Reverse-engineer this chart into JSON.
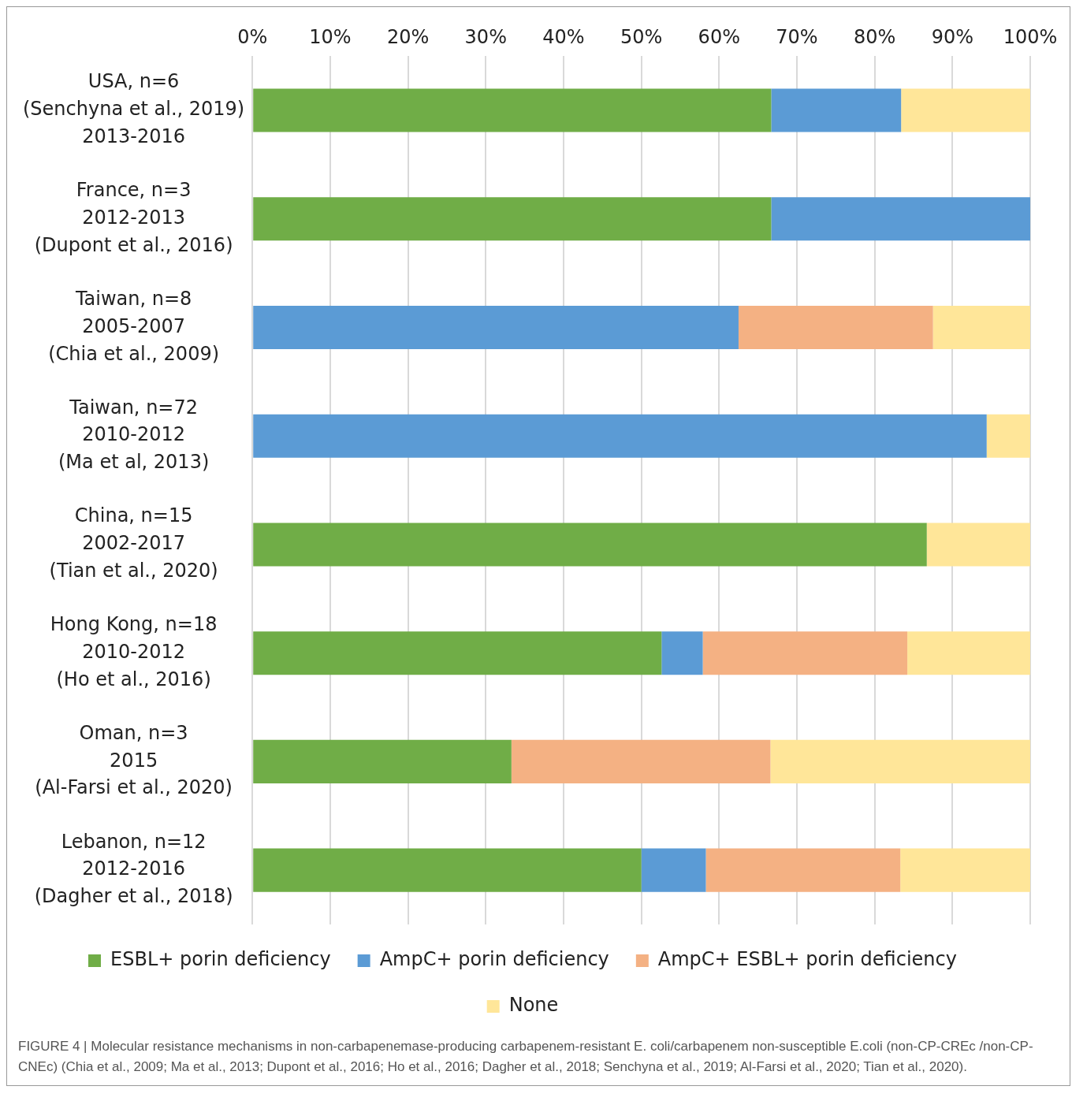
{
  "chart_data": {
    "type": "bar",
    "orientation": "horizontal",
    "stacked": true,
    "categories": [
      "USA, n=6\n(Senchyna et al., 2019)\n2013-2016",
      "France, n=3\n2012-2013\n(Dupont et al., 2016)",
      "Taiwan, n=8\n2005-2007\n(Chia et al., 2009)",
      "Taiwan, n=72\n2010-2012\n(Ma et al, 2013)",
      "China, n=15\n2002-2017\n(Tian et al., 2020)",
      "Hong Kong, n=18\n2010-2012\n(Ho et al., 2016)",
      "Oman, n=3\n2015\n(Al-Farsi et al., 2020)",
      "Lebanon, n=12\n2012-2016\n(Dagher et al., 2018)"
    ],
    "series": [
      {
        "name": "ESBL+ porin deficiency",
        "color": "#70ad47",
        "values": [
          66.7,
          66.7,
          0,
          0,
          86.7,
          52.6,
          33.3,
          50
        ]
      },
      {
        "name": "AmpC+ porin deficiency",
        "color": "#5b9bd5",
        "values": [
          16.7,
          33.3,
          62.5,
          94.4,
          0,
          5.3,
          0,
          8.3
        ]
      },
      {
        "name": "AmpC+ ESBL+ porin deficiency",
        "color": "#f4b183",
        "values": [
          0,
          0,
          25,
          0,
          0,
          26.3,
          33.3,
          25
        ]
      },
      {
        "name": "None",
        "color": "#ffe699",
        "values": [
          16.6,
          0,
          12.5,
          5.6,
          13.3,
          15.8,
          33.4,
          16.7
        ]
      }
    ],
    "xlim": [
      0,
      100
    ],
    "xticks": [
      {
        "value": 0,
        "label": "0%"
      },
      {
        "value": 10,
        "label": "10%"
      },
      {
        "value": 20,
        "label": "20%"
      },
      {
        "value": 30,
        "label": "30%"
      },
      {
        "value": 40,
        "label": "40%"
      },
      {
        "value": 50,
        "label": "50%"
      },
      {
        "value": 60,
        "label": "60%"
      },
      {
        "value": 70,
        "label": "70%"
      },
      {
        "value": 80,
        "label": "80%"
      },
      {
        "value": 90,
        "label": "90%"
      },
      {
        "value": 100,
        "label": "100%"
      }
    ],
    "grid": "x",
    "legend": "bottom",
    "annotations": [
      "FIGURE 4 | Molecular resistance mechanisms in non-carbapenemase-producing carbapenem-resistant E. coli/carbapenem non-susceptible E.coli (non-CP-CREc /non-CP-CNEc) (Chia et al., 2009; Ma et al., 2013; Dupont et al., 2016; Ho et al., 2016; Dagher et al., 2018; Senchyna et al., 2019; Al-Farsi et al., 2020; Tian et al., 2020)."
    ]
  }
}
